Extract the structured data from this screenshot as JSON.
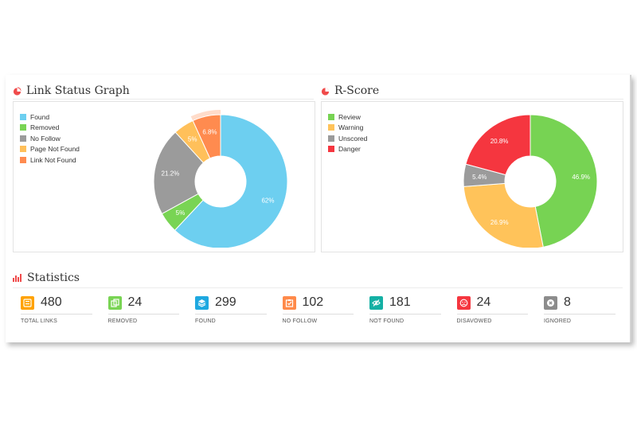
{
  "link_status": {
    "title": "Link Status Graph",
    "legend": [
      {
        "label": "Found",
        "color": "#6dcff0"
      },
      {
        "label": "Removed",
        "color": "#79d454"
      },
      {
        "label": "No Follow",
        "color": "#9b9b9b"
      },
      {
        "label": "Page Not Found",
        "color": "#ffc05a"
      },
      {
        "label": "Link Not Found",
        "color": "#ff8b4f"
      }
    ]
  },
  "r_score": {
    "title": "R-Score",
    "legend": [
      {
        "label": "Review",
        "color": "#77d353"
      },
      {
        "label": "Warning",
        "color": "#ffc35a"
      },
      {
        "label": "Unscored",
        "color": "#9b9b9b"
      },
      {
        "label": "Danger",
        "color": "#f5363f"
      }
    ]
  },
  "statistics": {
    "title": "Statistics",
    "items": [
      {
        "value": "480",
        "label": "TOTAL LINKS",
        "color": "#ffa200",
        "icon": "total-links-icon"
      },
      {
        "value": "24",
        "label": "REMOVED",
        "color": "#79d454",
        "icon": "removed-icon"
      },
      {
        "value": "299",
        "label": "FOUND",
        "color": "#1ea8e0",
        "icon": "found-icon"
      },
      {
        "value": "102",
        "label": "NO FOLLOW",
        "color": "#ff8a4a",
        "icon": "no-follow-icon"
      },
      {
        "value": "181",
        "label": "NOT FOUND",
        "color": "#14b0a4",
        "icon": "not-found-icon"
      },
      {
        "value": "24",
        "label": "DISAVOWED",
        "color": "#f5363f",
        "icon": "disavowed-icon"
      },
      {
        "value": "8",
        "label": "IGNORED",
        "color": "#8c8c8c",
        "icon": "ignored-icon"
      }
    ]
  },
  "chart_data": [
    {
      "type": "pie",
      "title": "Link Status Graph",
      "categories": [
        "Found",
        "Removed",
        "No Follow",
        "Page Not Found",
        "Link Not Found"
      ],
      "values": [
        62,
        5,
        21.2,
        5,
        6.8
      ],
      "labels": [
        "62%",
        "5%",
        "21.2%",
        "5%",
        "6.8%"
      ],
      "colors": [
        "#6dcff0",
        "#79d454",
        "#9b9b9b",
        "#ffc05a",
        "#ff8b4f"
      ],
      "start_angle_deg": 0,
      "highlight_index": 4,
      "legend_position": "top-left"
    },
    {
      "type": "pie",
      "title": "R-Score",
      "categories": [
        "Review",
        "Warning",
        "Unscored",
        "Danger"
      ],
      "values": [
        46.9,
        26.9,
        5.4,
        20.8
      ],
      "labels": [
        "46.9%",
        "26.9%",
        "5.4%",
        "20.8%"
      ],
      "colors": [
        "#77d353",
        "#ffc35a",
        "#9b9b9b",
        "#f5363f"
      ],
      "start_angle_deg": 0,
      "legend_position": "top-left"
    }
  ]
}
